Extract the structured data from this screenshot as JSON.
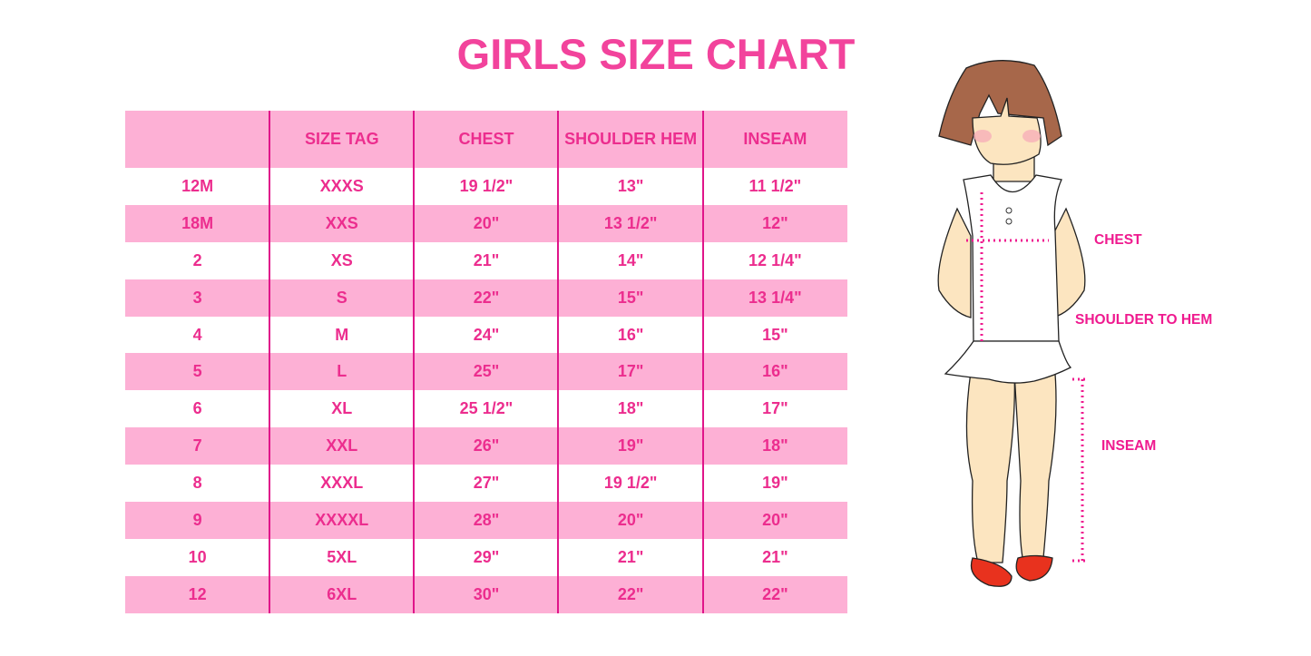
{
  "title": "GIRLS SIZE CHART",
  "table": {
    "headers": [
      "",
      "SIZE TAG",
      "CHEST",
      "SHOULDER HEM",
      "INSEAM"
    ],
    "rows": [
      [
        "12M",
        "XXXS",
        "19 1/2\"",
        "13\"",
        "11 1/2\""
      ],
      [
        "18M",
        "XXS",
        "20\"",
        "13 1/2\"",
        "12\""
      ],
      [
        "2",
        "XS",
        "21\"",
        "14\"",
        "12 1/4\""
      ],
      [
        "3",
        "S",
        "22\"",
        "15\"",
        "13 1/4\""
      ],
      [
        "4",
        "M",
        "24\"",
        "16\"",
        "15\""
      ],
      [
        "5",
        "L",
        "25\"",
        "17\"",
        "16\""
      ],
      [
        "6",
        "XL",
        "25 1/2\"",
        "18\"",
        "17\""
      ],
      [
        "7",
        "XXL",
        "26\"",
        "19\"",
        "18\""
      ],
      [
        "8",
        "XXXL",
        "27\"",
        "19 1/2\"",
        "19\""
      ],
      [
        "9",
        "XXXXL",
        "28\"",
        "20\"",
        "20\""
      ],
      [
        "10",
        "5XL",
        "29\"",
        "21\"",
        "21\""
      ],
      [
        "12",
        "6XL",
        "30\"",
        "22\"",
        "22\""
      ]
    ]
  },
  "figure": {
    "labels": {
      "chest": "CHEST",
      "shoulder_to_hem": "SHOULDER TO HEM",
      "inseam": "INSEAM"
    }
  },
  "colors": {
    "title": "#f2439c",
    "text": "#ec2d8e",
    "stripe": "#fdb0d5",
    "divider": "#e0158a",
    "measure": "#ef1a8f"
  }
}
